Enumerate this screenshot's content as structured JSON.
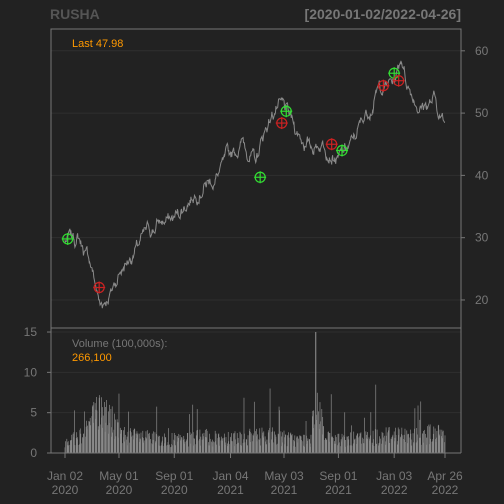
{
  "header": {
    "symbol": "RUSHA",
    "date_range": "[2020-01-02/2022-04-26]"
  },
  "price_panel": {
    "last_label": "Last 47.98",
    "y_ticks": [
      20,
      30,
      40,
      50,
      60
    ],
    "ylim": [
      15.5,
      63.5
    ]
  },
  "volume_panel": {
    "label": "Volume (100,000s):",
    "last_value": "266,100",
    "y_ticks": [
      0,
      5,
      10,
      15
    ],
    "ylim": [
      0,
      15.5
    ]
  },
  "x_axis": {
    "ticks": [
      {
        "date": "2020-01-02",
        "line1": "Jan 02",
        "line2": "2020"
      },
      {
        "date": "2020-05-01",
        "line1": "May 01",
        "line2": "2020"
      },
      {
        "date": "2020-09-01",
        "line1": "Sep 01",
        "line2": "2020"
      },
      {
        "date": "2021-01-04",
        "line1": "Jan 04",
        "line2": "2021"
      },
      {
        "date": "2021-05-03",
        "line1": "May 03",
        "line2": "2021"
      },
      {
        "date": "2021-09-01",
        "line1": "Sep 01",
        "line2": "2021"
      },
      {
        "date": "2022-01-03",
        "line1": "Jan 03",
        "line2": "2022"
      },
      {
        "date": "2022-04-26",
        "line1": "Apr 26",
        "line2": "2022"
      }
    ]
  },
  "colors": {
    "background": "#222222",
    "frame": "#777777",
    "grid": "#2f2f2f",
    "price_line": "#8a8a8a",
    "volume_bars": "#8a8a8a",
    "axis_text": "#777777",
    "accent_orange": "#ff9900",
    "buy_marker": "#33dd33",
    "sell_marker": "#cc2222"
  },
  "chart_data": {
    "type": "line",
    "title": "RUSHA",
    "x_range": [
      "2020-01-02",
      "2022-04-26"
    ],
    "series": [
      {
        "name": "RUSHA",
        "x": [
          "2020-01-02",
          "2020-02-01",
          "2020-03-01",
          "2020-03-20",
          "2020-04-15",
          "2020-05-01",
          "2020-06-01",
          "2020-07-01",
          "2020-08-01",
          "2020-09-01",
          "2020-10-01",
          "2020-11-01",
          "2020-12-01",
          "2021-01-04",
          "2021-02-01",
          "2021-03-01",
          "2021-03-25",
          "2021-04-15",
          "2021-05-03",
          "2021-06-01",
          "2021-07-01",
          "2021-08-01",
          "2021-09-01",
          "2021-10-01",
          "2021-11-01",
          "2021-12-01",
          "2022-01-03",
          "2022-01-20",
          "2022-02-01",
          "2022-03-01",
          "2022-04-01",
          "2022-04-26"
        ],
        "values": [
          29.5,
          30.0,
          25.5,
          19.0,
          21.5,
          24.5,
          27.5,
          30.5,
          32.5,
          33.0,
          36.0,
          38.5,
          39.5,
          43.0,
          45.5,
          42.0,
          48.0,
          51.0,
          50.5,
          47.0,
          44.5,
          45.5,
          42.5,
          45.0,
          50.0,
          54.0,
          55.0,
          59.0,
          55.0,
          51.0,
          52.0,
          47.98
        ]
      },
      {
        "name": "Volume (100,000s)",
        "x": [
          "2020-01-02",
          "2020-02-01",
          "2020-03-01",
          "2020-03-20",
          "2020-04-15",
          "2020-05-01",
          "2020-06-01",
          "2020-07-01",
          "2020-08-01",
          "2020-09-01",
          "2020-10-01",
          "2020-11-01",
          "2020-12-01",
          "2021-01-04",
          "2021-02-01",
          "2021-03-01",
          "2021-03-25",
          "2021-04-15",
          "2021-05-03",
          "2021-06-01",
          "2021-07-01",
          "2021-07-12",
          "2021-08-01",
          "2021-09-01",
          "2021-10-01",
          "2021-11-01",
          "2021-12-01",
          "2022-01-03",
          "2022-02-01",
          "2022-03-01",
          "2022-04-01",
          "2022-04-26"
        ],
        "values": [
          2.0,
          2.5,
          5.0,
          6.5,
          5.0,
          3.0,
          2.5,
          2.3,
          2.0,
          2.0,
          2.0,
          2.5,
          2.2,
          2.5,
          2.3,
          2.5,
          2.8,
          2.5,
          2.3,
          2.0,
          2.0,
          15.0,
          2.2,
          2.0,
          2.1,
          2.3,
          2.5,
          3.0,
          2.5,
          2.8,
          3.0,
          2.661
        ]
      }
    ],
    "buy_signals": [
      {
        "date": "2020-01-08",
        "price": 29.8
      },
      {
        "date": "2021-03-11",
        "price": 39.7
      },
      {
        "date": "2021-05-08",
        "price": 50.3
      },
      {
        "date": "2021-09-09",
        "price": 44.0
      },
      {
        "date": "2022-01-03",
        "price": 56.4
      }
    ],
    "sell_signals": [
      {
        "date": "2020-03-18",
        "price": 22.0
      },
      {
        "date": "2021-04-28",
        "price": 48.4
      },
      {
        "date": "2021-08-17",
        "price": 45.0
      },
      {
        "date": "2021-12-10",
        "price": 54.4
      },
      {
        "date": "2022-01-13",
        "price": 55.2
      }
    ],
    "ylim": [
      15.5,
      63.5
    ],
    "grid": true
  }
}
